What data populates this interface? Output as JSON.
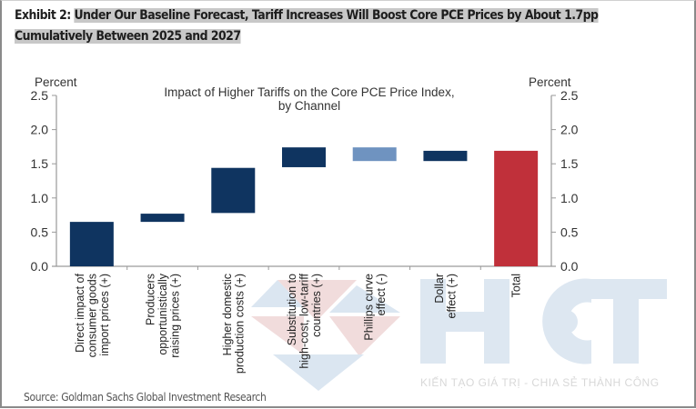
{
  "header": {
    "exhibit_label": "Exhibit 2:",
    "title_line1": "Under Our Baseline Forecast, Tariff Increases Will Boost Core PCE Prices by About 1.7pp",
    "title_line2": "Cumulatively Between 2025 and 2027"
  },
  "source": "Source: Goldman Sachs Global Investment Research",
  "watermark": {
    "logo_text": "HCT",
    "tagline": "KIẾN TẠO GIÁ TRỊ - CHIA SẺ THÀNH CÔNG"
  },
  "chart_data": {
    "type": "bar",
    "subtype": "waterfall",
    "title_line1": "Impact of Higher Tariffs on the Core PCE Price Index,",
    "title_line2": "by Channel",
    "ylabel_left": "Percent",
    "ylabel_right": "Percent",
    "ylim": [
      0,
      2.5
    ],
    "yticks": [
      "0.0",
      "0.5",
      "1.0",
      "1.5",
      "2.0",
      "2.5"
    ],
    "grid": false,
    "categories": [
      [
        "Direct impact of",
        "consumer goods",
        "import prices (+)"
      ],
      [
        "Producers",
        "opportunistically",
        "raising prices (+)"
      ],
      [
        "Higher domestic",
        "production costs (+)"
      ],
      [
        "Substitution to",
        "high-cost, low-tariff",
        "countries (+)"
      ],
      [
        "Phillips curve",
        "effect (-)"
      ],
      [
        "Dollar",
        "effect (+)"
      ],
      [
        "Total"
      ]
    ],
    "bars": [
      {
        "start": 0.0,
        "end": 0.65,
        "color": "#0f3460"
      },
      {
        "start": 0.65,
        "end": 0.77,
        "color": "#0f3460"
      },
      {
        "start": 0.78,
        "end": 1.44,
        "color": "#0f3460"
      },
      {
        "start": 1.45,
        "end": 1.74,
        "color": "#0f3460"
      },
      {
        "start": 1.74,
        "end": 1.54,
        "color": "#6f93c0"
      },
      {
        "start": 1.54,
        "end": 1.69,
        "color": "#0f3460"
      },
      {
        "start": 0.0,
        "end": 1.69,
        "color": "#c0303a"
      }
    ]
  }
}
